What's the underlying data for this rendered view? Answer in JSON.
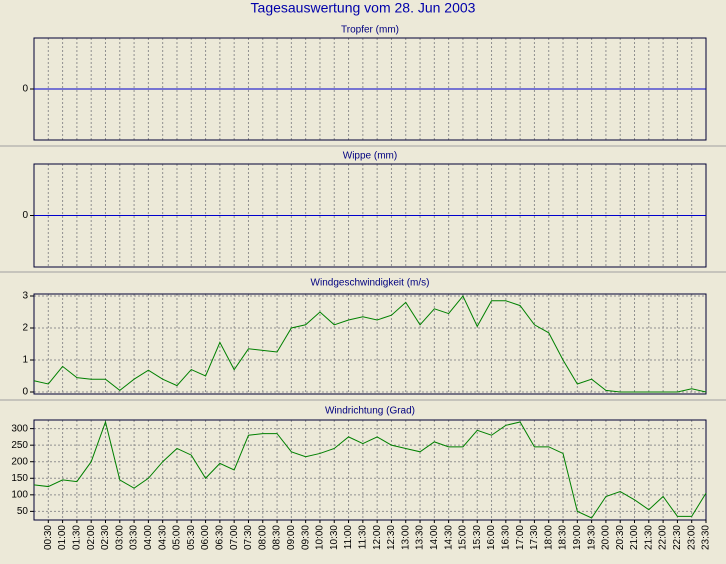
{
  "title": "Tagesauswertung vom 28. Jun 2003",
  "chart_data": [
    {
      "type": "line",
      "title": "Tropfer (mm)",
      "ylim": [
        -1,
        1
      ],
      "yticks": [
        0
      ],
      "grid": true,
      "series": [
        {
          "name": "Tropfer",
          "color": "#0000cc",
          "values": [
            0,
            0,
            0,
            0,
            0,
            0,
            0,
            0,
            0,
            0,
            0,
            0,
            0,
            0,
            0,
            0,
            0,
            0,
            0,
            0,
            0,
            0,
            0,
            0,
            0,
            0,
            0,
            0,
            0,
            0,
            0,
            0,
            0,
            0,
            0,
            0,
            0,
            0,
            0,
            0,
            0,
            0,
            0,
            0,
            0,
            0,
            0,
            0
          ]
        }
      ]
    },
    {
      "type": "line",
      "title": "Wippe (mm)",
      "ylim": [
        -1,
        1
      ],
      "yticks": [
        0
      ],
      "grid": true,
      "series": [
        {
          "name": "Wippe",
          "color": "#0000cc",
          "values": [
            0,
            0,
            0,
            0,
            0,
            0,
            0,
            0,
            0,
            0,
            0,
            0,
            0,
            0,
            0,
            0,
            0,
            0,
            0,
            0,
            0,
            0,
            0,
            0,
            0,
            0,
            0,
            0,
            0,
            0,
            0,
            0,
            0,
            0,
            0,
            0,
            0,
            0,
            0,
            0,
            0,
            0,
            0,
            0,
            0,
            0,
            0,
            0
          ]
        }
      ]
    },
    {
      "type": "line",
      "title": "Windgeschwindigkeit (m/s)",
      "ylim": [
        0,
        3
      ],
      "yticks": [
        0,
        1,
        2,
        3
      ],
      "grid": true,
      "series": [
        {
          "name": "Windgeschwindigkeit",
          "color": "#008000",
          "values": [
            0.35,
            0.25,
            0.8,
            0.45,
            0.4,
            0.4,
            0.05,
            0.4,
            0.68,
            0.4,
            0.2,
            0.7,
            0.5,
            1.55,
            0.7,
            1.35,
            1.3,
            1.25,
            2.0,
            2.1,
            2.5,
            2.1,
            2.25,
            2.35,
            2.25,
            2.4,
            2.8,
            2.1,
            2.6,
            2.45,
            3.0,
            2.05,
            2.85,
            2.85,
            2.7,
            2.1,
            1.85,
            1.0,
            0.25,
            0.4,
            0.05,
            0,
            0,
            0,
            0,
            0,
            0.1,
            0
          ]
        }
      ]
    },
    {
      "type": "line",
      "title": "Windrichtung (Grad)",
      "ylim": [
        30,
        320
      ],
      "yticks": [
        50,
        100,
        150,
        200,
        250,
        300
      ],
      "grid": true,
      "categories": [
        null,
        "00:30",
        "01:00",
        "01:30",
        "02:00",
        "02:30",
        "03:00",
        "03:30",
        "04:00",
        "04:30",
        "05:00",
        "05:30",
        "06:00",
        "06:30",
        "07:00",
        "07:30",
        "08:00",
        "08:30",
        "09:00",
        "09:30",
        "10:00",
        "10:30",
        "11:00",
        "11:30",
        "12:00",
        "12:30",
        "13:00",
        "13:30",
        "14:00",
        "14:30",
        "15:00",
        "15:30",
        "16:00",
        "16:30",
        "17:00",
        "17:30",
        "18:00",
        "18:30",
        "19:00",
        "19:30",
        "20:00",
        "20:30",
        "21:00",
        "21:30",
        "22:00",
        "22:30",
        "23:00",
        "23:30"
      ],
      "series": [
        {
          "name": "Windrichtung",
          "color": "#008000",
          "values": [
            130,
            125,
            145,
            140,
            200,
            320,
            145,
            120,
            150,
            200,
            240,
            220,
            150,
            195,
            175,
            280,
            285,
            285,
            230,
            215,
            225,
            240,
            275,
            255,
            275,
            250,
            240,
            230,
            260,
            245,
            245,
            295,
            280,
            310,
            320,
            245,
            245,
            225,
            50,
            30,
            95,
            110,
            85,
            55,
            95,
            35,
            35,
            105
          ]
        }
      ]
    }
  ]
}
